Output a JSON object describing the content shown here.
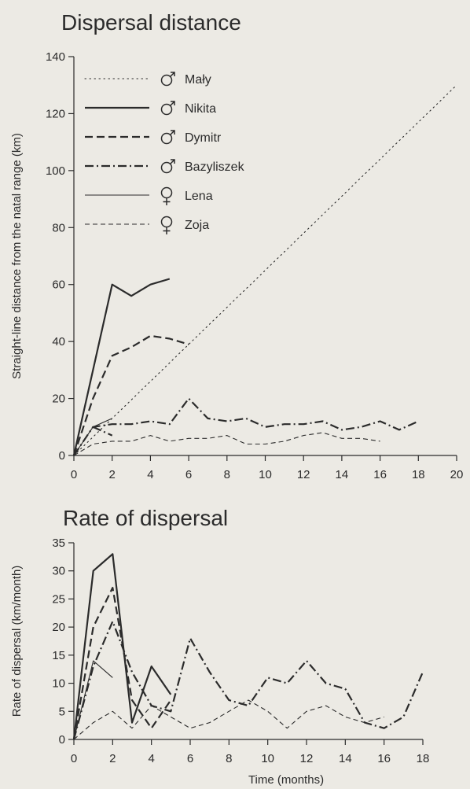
{
  "colors": {
    "ink": "#2B2B2B",
    "background": "#ECEAE4"
  },
  "chart_data": [
    {
      "type": "line",
      "title": "Dispersal distance",
      "xlabel": "",
      "ylabel": "Straight-line distance from  the natal range (km)",
      "xlim": [
        0,
        20
      ],
      "ylim": [
        0,
        140
      ],
      "xticks": [
        0,
        2,
        4,
        6,
        8,
        10,
        12,
        14,
        16,
        18,
        20
      ],
      "yticks": [
        0,
        20,
        40,
        60,
        80,
        100,
        120,
        140
      ],
      "grid": false,
      "legend_position": "top-left",
      "series": [
        {
          "name": "Mały",
          "sex": "male",
          "style": "dotted",
          "weight": "normal",
          "x": [
            0,
            20
          ],
          "y": [
            0,
            130
          ]
        },
        {
          "name": "Nikita",
          "sex": "male",
          "style": "solid",
          "weight": "thick",
          "x": [
            0,
            2,
            3,
            4,
            5
          ],
          "y": [
            0,
            60,
            56,
            60,
            62
          ]
        },
        {
          "name": "Dymitr",
          "sex": "male",
          "style": "dashed",
          "weight": "thick",
          "x": [
            0,
            1,
            2,
            3,
            4,
            5,
            6
          ],
          "y": [
            0,
            20,
            35,
            38,
            42,
            41,
            39
          ]
        },
        {
          "name": "Bazyliszek",
          "sex": "male",
          "style": "dashdot",
          "weight": "thick",
          "x": [
            0,
            1,
            2,
            3,
            4,
            5,
            6,
            7,
            8,
            9,
            10,
            11,
            12,
            13,
            14,
            15,
            16,
            17,
            18
          ],
          "y": [
            0,
            10,
            11,
            11,
            12,
            11,
            20,
            13,
            12,
            13,
            10,
            11,
            11,
            12,
            9,
            10,
            12,
            9,
            12
          ]
        },
        {
          "name": "Lena",
          "sex": "female",
          "style": "solid",
          "weight": "thin",
          "x": [
            0,
            1,
            2
          ],
          "y": [
            0,
            10,
            13
          ]
        },
        {
          "name": "Zoja",
          "sex": "female",
          "style": "dashed",
          "weight": "thin",
          "x": [
            0,
            1,
            2,
            3,
            4,
            5,
            6,
            7,
            8,
            9,
            10,
            11,
            12,
            13,
            14,
            15,
            16
          ],
          "y": [
            0,
            4,
            5,
            5,
            7,
            5,
            6,
            6,
            7,
            4,
            4,
            5,
            7,
            8,
            6,
            6,
            5
          ]
        }
      ],
      "extra_segments": [
        {
          "style": "dashdot",
          "weight": "thick",
          "x": [
            1,
            2
          ],
          "y": [
            10,
            7
          ]
        }
      ]
    },
    {
      "type": "line",
      "title": "Rate of dispersal",
      "xlabel": "Time (months)",
      "ylabel": "Rate of dispersal (km/month)",
      "xlim": [
        0,
        18
      ],
      "ylim": [
        0,
        35
      ],
      "xticks": [
        0,
        2,
        4,
        6,
        8,
        10,
        12,
        14,
        16,
        18
      ],
      "yticks": [
        0,
        5,
        10,
        15,
        20,
        25,
        30,
        35
      ],
      "grid": false,
      "series": [
        {
          "name": "Nikita",
          "style": "solid",
          "weight": "thick",
          "x": [
            0,
            1,
            2,
            3,
            4,
            5
          ],
          "y": [
            0,
            30,
            33,
            3,
            13,
            8
          ]
        },
        {
          "name": "Dymitr",
          "style": "dashed",
          "weight": "thick",
          "x": [
            0,
            1,
            2,
            3,
            4,
            5
          ],
          "y": [
            0,
            20,
            27,
            7,
            2,
            7
          ]
        },
        {
          "name": "Bazyliszek",
          "style": "dashdot",
          "weight": "thick",
          "x": [
            0,
            1,
            2,
            3,
            4,
            5,
            6,
            7,
            8,
            9,
            10,
            11,
            12,
            13,
            14,
            15,
            16,
            17,
            18
          ],
          "y": [
            0,
            13,
            21,
            12,
            6,
            5,
            18,
            12,
            7,
            6,
            11,
            10,
            14,
            10,
            9,
            3,
            2,
            4,
            12
          ]
        },
        {
          "name": "Lena",
          "style": "solid",
          "weight": "thin",
          "x": [
            0,
            1,
            2
          ],
          "y": [
            0,
            14,
            11
          ]
        },
        {
          "name": "Zoja",
          "style": "dashed",
          "weight": "thin",
          "x": [
            0,
            1,
            2,
            3,
            4,
            5,
            6,
            7,
            8,
            9,
            10,
            11,
            12,
            13,
            14,
            15,
            16
          ],
          "y": [
            0,
            3,
            5,
            2,
            6,
            4,
            2,
            3,
            5,
            7,
            5,
            2,
            5,
            6,
            4,
            3,
            4
          ]
        }
      ]
    }
  ]
}
